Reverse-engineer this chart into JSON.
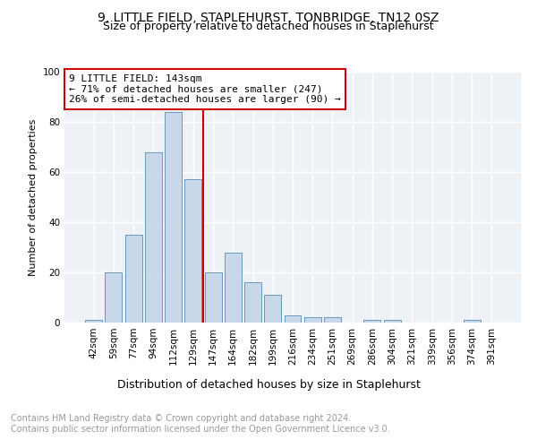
{
  "title": "9, LITTLE FIELD, STAPLEHURST, TONBRIDGE, TN12 0SZ",
  "subtitle": "Size of property relative to detached houses in Staplehurst",
  "xlabel": "Distribution of detached houses by size in Staplehurst",
  "ylabel": "Number of detached properties",
  "categories": [
    "42sqm",
    "59sqm",
    "77sqm",
    "94sqm",
    "112sqm",
    "129sqm",
    "147sqm",
    "164sqm",
    "182sqm",
    "199sqm",
    "216sqm",
    "234sqm",
    "251sqm",
    "269sqm",
    "286sqm",
    "304sqm",
    "321sqm",
    "339sqm",
    "356sqm",
    "374sqm",
    "391sqm"
  ],
  "values": [
    1,
    20,
    35,
    68,
    84,
    57,
    20,
    28,
    16,
    11,
    3,
    2,
    2,
    0,
    1,
    1,
    0,
    0,
    0,
    1,
    0
  ],
  "bar_color": "#c8d8e8",
  "bar_edge_color": "#6699bb",
  "annotation_line_label": "9 LITTLE FIELD: 143sqm",
  "annotation_text1": "← 71% of detached houses are smaller (247)",
  "annotation_text2": "26% of semi-detached houses are larger (90) →",
  "annotation_box_color": "#ffffff",
  "annotation_box_edge_color": "#cc0000",
  "vline_color": "#cc0000",
  "ylim": [
    0,
    100
  ],
  "yticks": [
    0,
    20,
    40,
    60,
    80,
    100
  ],
  "background_color": "#eef2f7",
  "grid_color": "#ffffff",
  "footer_text": "Contains HM Land Registry data © Crown copyright and database right 2024.\nContains public sector information licensed under the Open Government Licence v3.0.",
  "title_fontsize": 10,
  "subtitle_fontsize": 9,
  "xlabel_fontsize": 9,
  "ylabel_fontsize": 8,
  "tick_fontsize": 7.5,
  "annotation_fontsize": 8,
  "footer_fontsize": 7
}
